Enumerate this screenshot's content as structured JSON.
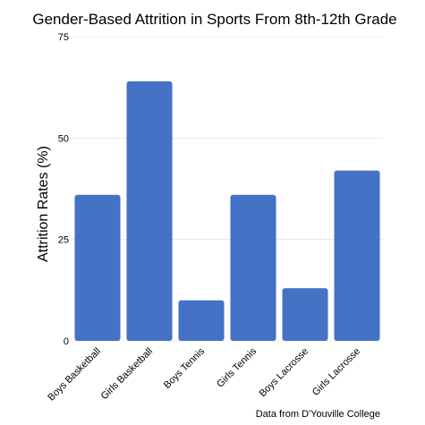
{
  "chart_data": {
    "type": "bar",
    "title": "Gender-Based Attrition in Sports From 8th-12th Grade",
    "xlabel": "",
    "ylabel": "Attrition Rates (%)",
    "caption": "Data from D'Youville College",
    "categories": [
      "Boys Basketball",
      "Girls Basketball",
      "Boys Tennis",
      "Girls Tennis",
      "Boys Lacrosse",
      "Girls Lacrosse"
    ],
    "values": [
      36,
      64,
      10,
      36,
      13,
      42
    ],
    "ylim": [
      0,
      75
    ],
    "yticks": [
      0,
      25,
      50,
      75
    ],
    "grid": true,
    "bar_color": "#4472c4"
  }
}
